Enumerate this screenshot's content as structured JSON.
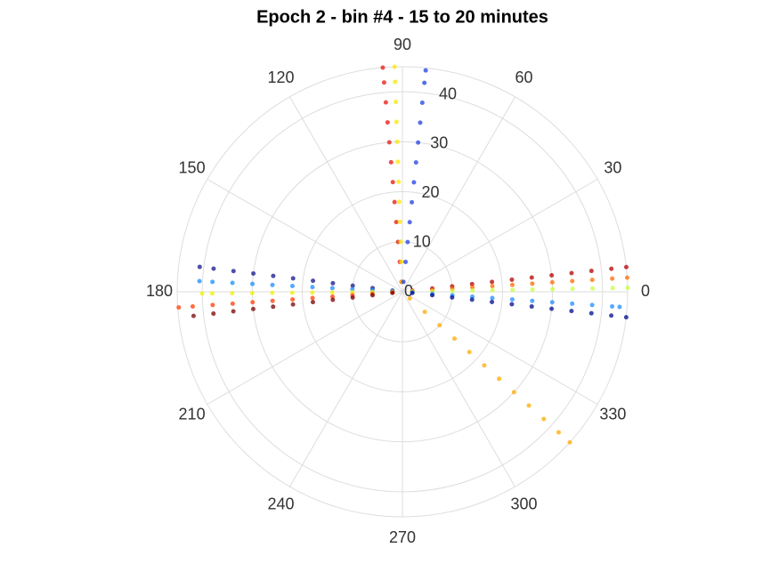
{
  "chart_data": {
    "type": "polar-scatter",
    "title": "Epoch 2 - bin #4 - 15 to 20 minutes",
    "rlim": [
      0,
      45
    ],
    "rticks": [
      0,
      10,
      20,
      30,
      40
    ],
    "thetaticks": [
      0,
      30,
      60,
      90,
      120,
      150,
      180,
      210,
      240,
      270,
      300,
      330
    ],
    "grid": true,
    "series": [
      {
        "color": "#e8140f",
        "theta": 95,
        "r": [
          2,
          6,
          10,
          14,
          18,
          22,
          26,
          30,
          34,
          38,
          42,
          45
        ]
      },
      {
        "color": "#ffe600",
        "theta": 92,
        "r": [
          2,
          6,
          10,
          14,
          18,
          22,
          26,
          30,
          34,
          38,
          42,
          45
        ]
      },
      {
        "color": "#1f3fe0",
        "theta": 84,
        "r": [
          2,
          6,
          10,
          14,
          18,
          22,
          26,
          30,
          34,
          38,
          42,
          44.5
        ]
      },
      {
        "color": "#b40000",
        "theta": 6.3,
        "r": [
          2,
          6,
          10,
          14,
          18,
          22,
          26,
          30,
          34,
          38,
          42,
          45
        ]
      },
      {
        "color": "#ff6a00",
        "theta": 3.6,
        "r": [
          2,
          6,
          10,
          14,
          18,
          22,
          26,
          30,
          34,
          38,
          42,
          45
        ]
      },
      {
        "color": "#c8ff3c",
        "theta": 1,
        "r": [
          2,
          6,
          10,
          14,
          18,
          22,
          26,
          30,
          34,
          38,
          42,
          45
        ]
      },
      {
        "color": "#1e8cff",
        "theta": -4,
        "r": [
          2,
          6,
          10,
          14,
          18,
          22,
          26,
          30,
          34,
          38,
          42,
          43.5
        ]
      },
      {
        "color": "#000a8c",
        "theta": -6.5,
        "r": [
          2,
          6,
          10,
          14,
          18,
          22,
          26,
          30,
          34,
          38,
          42,
          45
        ]
      },
      {
        "color": "#ffaa00",
        "theta": 318,
        "r": [
          2,
          6,
          10,
          14,
          18,
          22,
          26,
          30,
          34,
          38,
          42,
          45
        ]
      },
      {
        "color": "#14148c",
        "theta": 173,
        "r": [
          2,
          6,
          10,
          14,
          18,
          22,
          26,
          30,
          34,
          38,
          40.8
        ]
      },
      {
        "color": "#1a8cff",
        "theta": 177,
        "r": [
          2,
          6,
          10,
          14,
          18,
          22,
          26,
          30,
          34,
          38,
          40.6
        ]
      },
      {
        "color": "#f0f000",
        "theta": 180.5,
        "r": [
          2,
          6,
          10,
          14,
          18,
          22,
          26,
          30,
          34,
          38,
          40
        ]
      },
      {
        "color": "#ff3c00",
        "theta": 184,
        "r": [
          2,
          6,
          10,
          14,
          18,
          22,
          26,
          30,
          34,
          38,
          42,
          44.8
        ]
      },
      {
        "color": "#780000",
        "theta": 186.6,
        "r": [
          2,
          6,
          10,
          14,
          18,
          22,
          26,
          30,
          34,
          38,
          42
        ]
      }
    ]
  }
}
